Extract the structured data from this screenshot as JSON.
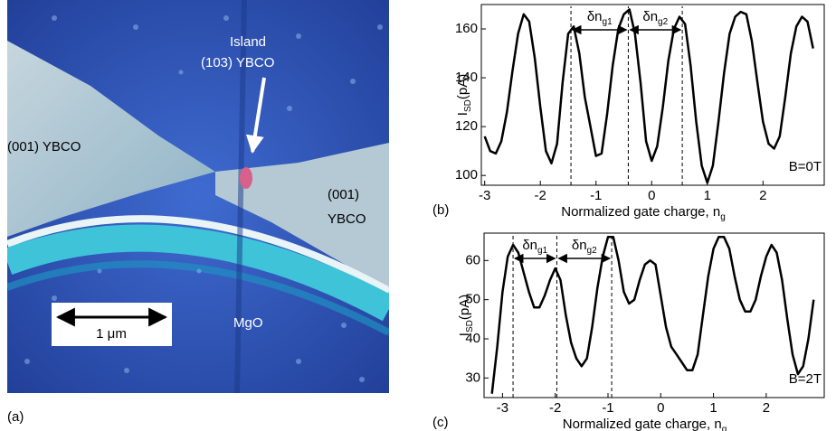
{
  "image": {
    "panel_label": "(a)",
    "labels": [
      "Island",
      "(103) YBCO",
      "(001) YBCO",
      "(001)",
      "YBCO",
      "MgO"
    ],
    "scale_bar": "1 μm"
  },
  "chart_data": [
    {
      "type": "line",
      "panel_label": "(b)",
      "xlabel": "Normalized gate charge, n",
      "xlabel_sub": "g",
      "ylabel": "I",
      "ylabel_sub": "SD",
      "ylabel_unit": "(pA)",
      "annotation": "B=0T",
      "x": [
        -3.0,
        -2.9,
        -2.8,
        -2.7,
        -2.6,
        -2.5,
        -2.4,
        -2.3,
        -2.2,
        -2.1,
        -2.0,
        -1.9,
        -1.8,
        -1.7,
        -1.6,
        -1.5,
        -1.4,
        -1.3,
        -1.2,
        -1.1,
        -1.0,
        -0.9,
        -0.8,
        -0.7,
        -0.6,
        -0.5,
        -0.4,
        -0.3,
        -0.2,
        -0.1,
        0.0,
        0.1,
        0.2,
        0.3,
        0.4,
        0.5,
        0.6,
        0.7,
        0.8,
        0.9,
        1.0,
        1.1,
        1.2,
        1.3,
        1.4,
        1.5,
        1.6,
        1.7,
        1.8,
        1.9,
        2.0,
        2.1,
        2.2,
        2.3,
        2.4,
        2.5,
        2.6,
        2.7,
        2.8,
        2.9
      ],
      "series": [
        {
          "color": "#000000",
          "values": [
            116,
            110,
            109,
            114,
            126,
            143,
            158,
            166,
            163,
            148,
            128,
            110,
            105,
            113,
            138,
            158,
            161,
            150,
            132,
            120,
            108,
            109,
            125,
            145,
            160,
            166,
            168,
            158,
            138,
            114,
            106,
            112,
            128,
            147,
            160,
            165,
            162,
            145,
            122,
            104,
            97,
            104,
            122,
            142,
            158,
            165,
            167,
            166,
            155,
            138,
            122,
            113,
            111,
            116,
            132,
            150,
            161,
            165,
            163,
            152
          ]
        }
      ],
      "markers": [
        -1.45,
        -0.42,
        0.55
      ],
      "spacing_labels": [
        {
          "text": "δn",
          "sub": "g1"
        },
        {
          "text": "δn",
          "sub": "g2"
        }
      ],
      "xlim": [
        -3.06,
        3.1
      ],
      "ylim": [
        96,
        170
      ],
      "xticks": [
        -3,
        -2,
        -1,
        0,
        1,
        2
      ],
      "yticks": [
        100,
        120,
        140,
        160
      ]
    },
    {
      "type": "line",
      "panel_label": "(c)",
      "xlabel": "Normalized gate charge, n",
      "xlabel_sub": "g",
      "ylabel": "I",
      "ylabel_sub": "SD",
      "ylabel_unit": "(pA)",
      "annotation": "B=2T",
      "x": [
        -3.2,
        -3.1,
        -3.0,
        -2.9,
        -2.8,
        -2.7,
        -2.6,
        -2.5,
        -2.4,
        -2.3,
        -2.2,
        -2.1,
        -2.0,
        -1.9,
        -1.8,
        -1.7,
        -1.6,
        -1.5,
        -1.4,
        -1.3,
        -1.2,
        -1.1,
        -1.0,
        -0.9,
        -0.8,
        -0.7,
        -0.6,
        -0.5,
        -0.4,
        -0.3,
        -0.2,
        -0.1,
        0.0,
        0.1,
        0.2,
        0.3,
        0.4,
        0.5,
        0.6,
        0.7,
        0.8,
        0.9,
        1.0,
        1.1,
        1.2,
        1.3,
        1.4,
        1.5,
        1.6,
        1.7,
        1.8,
        1.9,
        2.0,
        2.1,
        2.2,
        2.3,
        2.4,
        2.5,
        2.6,
        2.7,
        2.8,
        2.9
      ],
      "series": [
        {
          "color": "#000000",
          "values": [
            26,
            38,
            52,
            61,
            64,
            62,
            57,
            52,
            48,
            48,
            51,
            55,
            58,
            55,
            46,
            39,
            35,
            33,
            35,
            43,
            53,
            61,
            66,
            66,
            60,
            52,
            49,
            50,
            55,
            59,
            60,
            59,
            51,
            43,
            38,
            36,
            34,
            32,
            32,
            36,
            46,
            56,
            63,
            66,
            66,
            63,
            56,
            50,
            47,
            47,
            50,
            56,
            61,
            64,
            62,
            55,
            45,
            36,
            31,
            33,
            40,
            50
          ]
        }
      ],
      "markers": [
        -2.8,
        -1.97,
        -0.93
      ],
      "spacing_labels": [
        {
          "text": "δn",
          "sub": "g1"
        },
        {
          "text": "δn",
          "sub": "g2"
        }
      ],
      "xlim": [
        -3.35,
        3.1
      ],
      "ylim": [
        25,
        67
      ],
      "xticks": [
        -3,
        -2,
        -1,
        0,
        1,
        2
      ],
      "yticks": [
        30,
        40,
        50,
        60
      ]
    }
  ]
}
